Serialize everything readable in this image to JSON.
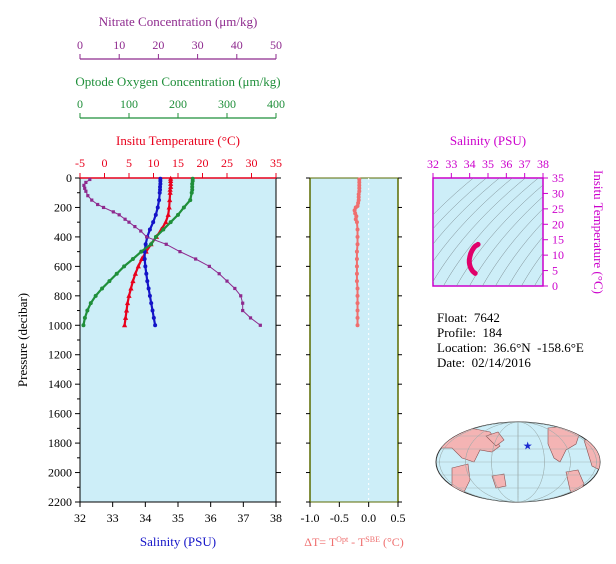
{
  "colors": {
    "nitrate": "#8e2a8e",
    "oxygen": "#1f8f3a",
    "temperature": "#e8001c",
    "salinity": "#1414c8",
    "delta_t": "#ef6f6f",
    "ts_axis": "#cc00cc",
    "ts_curve": "#e0006a",
    "panel_bg": "#cdeef8",
    "frame_green": "#5b6b00"
  },
  "info": {
    "float": "Float:  7642",
    "profile": "Profile:  184",
    "location": "Location:  36.6°N  -158.6°E",
    "date": "Date:  02/14/2016"
  },
  "footer_text": "",
  "chart_data": [
    {
      "type": "line",
      "panel": "profile",
      "y_axis": {
        "label": "Pressure (decibar)",
        "range": [
          0,
          2200
        ],
        "inverted": true,
        "ticks": [
          0,
          200,
          400,
          600,
          800,
          1000,
          1200,
          1400,
          1600,
          1800,
          2000,
          2200
        ]
      },
      "axes": [
        {
          "key": "salinity",
          "position": "bottom",
          "label": "Salinity (PSU)",
          "range": [
            32,
            38
          ],
          "ticks": [
            32,
            33,
            34,
            35,
            36,
            37,
            38
          ]
        },
        {
          "key": "temperature",
          "position": "top",
          "label": "Insitu Temperature (°C)",
          "range": [
            -5,
            35
          ],
          "ticks": [
            -5,
            0,
            5,
            10,
            15,
            20,
            25,
            30,
            35
          ]
        },
        {
          "key": "oxygen",
          "position": "top",
          "label": "Optode Oxygen Concentration (μm/kg)",
          "range": [
            0,
            400
          ],
          "ticks": [
            0,
            100,
            200,
            300,
            400
          ]
        },
        {
          "key": "nitrate",
          "position": "top",
          "label": "Nitrate Concentration (μm/kg)",
          "range": [
            0,
            50
          ],
          "ticks": [
            0,
            10,
            20,
            30,
            40,
            50
          ]
        }
      ],
      "series": [
        {
          "key": "temperature",
          "pressure": [
            5,
            20,
            40,
            60,
            80,
            100,
            150,
            200,
            250,
            300,
            350,
            400,
            450,
            500,
            550,
            600,
            650,
            700,
            750,
            800,
            850,
            900,
            950,
            1000
          ],
          "values": [
            13.5,
            13.5,
            13.5,
            13.5,
            13.4,
            13.4,
            13.3,
            13.2,
            13.0,
            12.5,
            11.6,
            10.6,
            9.5,
            8.5,
            7.6,
            6.9,
            6.3,
            5.8,
            5.4,
            5.0,
            4.7,
            4.5,
            4.3,
            4.1
          ]
        },
        {
          "key": "salinity",
          "pressure": [
            5,
            20,
            40,
            60,
            80,
            100,
            150,
            200,
            250,
            300,
            350,
            400,
            450,
            500,
            550,
            600,
            650,
            700,
            750,
            800,
            850,
            900,
            950,
            1000
          ],
          "values": [
            34.46,
            34.46,
            34.46,
            34.45,
            34.45,
            34.44,
            34.42,
            34.38,
            34.32,
            34.24,
            34.14,
            34.06,
            34.01,
            33.98,
            33.98,
            34.0,
            34.03,
            34.06,
            34.1,
            34.14,
            34.18,
            34.22,
            34.26,
            34.3
          ]
        },
        {
          "key": "oxygen",
          "pressure": [
            5,
            20,
            40,
            60,
            80,
            100,
            150,
            200,
            250,
            300,
            350,
            400,
            450,
            500,
            550,
            600,
            650,
            700,
            750,
            800,
            850,
            900,
            950,
            1000
          ],
          "values": [
            230,
            230,
            229,
            229,
            229,
            228,
            225,
            212,
            200,
            185,
            170,
            155,
            145,
            125,
            108,
            90,
            75,
            60,
            45,
            32,
            22,
            15,
            10,
            7
          ]
        },
        {
          "key": "nitrate",
          "pressure": [
            10,
            30,
            50,
            70,
            90,
            120,
            150,
            180,
            200,
            230,
            250,
            280,
            300,
            330,
            360,
            400,
            450,
            500,
            550,
            600,
            650,
            700,
            750,
            800,
            850,
            900,
            950,
            1000
          ],
          "values": [
            2.5,
            1.5,
            1.0,
            1.2,
            1.5,
            2.0,
            3.0,
            4.5,
            6.0,
            8.5,
            10.0,
            11.5,
            12.5,
            14.0,
            15.5,
            17.0,
            22.0,
            25.5,
            29.5,
            33.0,
            35.5,
            37.5,
            39.5,
            41.0,
            41.5,
            41.5,
            43.5,
            46.0
          ]
        }
      ]
    },
    {
      "type": "line",
      "panel": "delta-t",
      "x_axis": {
        "label": "ΔT= T<sup>Opt</sup> - T<sup>SBE</sup> (°C)",
        "range": [
          -1.0,
          0.5
        ],
        "ticks": [
          -1.0,
          -0.5,
          0.0,
          0.5
        ]
      },
      "y_axis": {
        "range": [
          0,
          2200
        ],
        "inverted": true
      },
      "series": [
        {
          "key": "delta_t",
          "pressure": [
            10,
            30,
            50,
            70,
            90,
            110,
            130,
            150,
            170,
            190,
            200,
            220,
            240,
            260,
            280,
            300,
            350,
            400,
            450,
            500,
            550,
            600,
            650,
            700,
            750,
            800,
            850,
            900,
            950,
            1000
          ],
          "values": [
            -0.16,
            -0.16,
            -0.16,
            -0.16,
            -0.16,
            -0.17,
            -0.17,
            -0.17,
            -0.18,
            -0.19,
            -0.22,
            -0.24,
            -0.23,
            -0.21,
            -0.22,
            -0.2,
            -0.19,
            -0.19,
            -0.19,
            -0.2,
            -0.2,
            -0.2,
            -0.2,
            -0.2,
            -0.19,
            -0.19,
            -0.19,
            -0.19,
            -0.19,
            -0.19
          ]
        }
      ]
    },
    {
      "type": "line",
      "panel": "ts-diagram",
      "x_axis": {
        "label": "Salinity (PSU)",
        "range": [
          32,
          38
        ],
        "ticks": [
          32,
          33,
          34,
          35,
          36,
          37,
          38
        ]
      },
      "y_axis": {
        "label": "Insitu Temperature (°C)",
        "range": [
          0,
          35
        ],
        "ticks": [
          0,
          5,
          10,
          15,
          20,
          25,
          30,
          35
        ]
      },
      "series": [
        {
          "key": "ts",
          "salinity": [
            34.3,
            34.26,
            34.22,
            34.18,
            34.14,
            34.1,
            34.06,
            34.03,
            34.0,
            33.98,
            33.98,
            34.01,
            34.06,
            34.14,
            34.24,
            34.32,
            34.38,
            34.42,
            34.44,
            34.45,
            34.46
          ],
          "temperature": [
            4.1,
            4.3,
            4.5,
            4.7,
            5.0,
            5.4,
            5.8,
            6.3,
            6.9,
            7.6,
            8.5,
            9.5,
            10.6,
            11.6,
            12.5,
            13.0,
            13.2,
            13.3,
            13.4,
            13.4,
            13.5
          ]
        }
      ]
    },
    {
      "type": "map",
      "panel": "location-map",
      "marker": {
        "lat": 36.6,
        "lon": -158.6
      }
    }
  ]
}
